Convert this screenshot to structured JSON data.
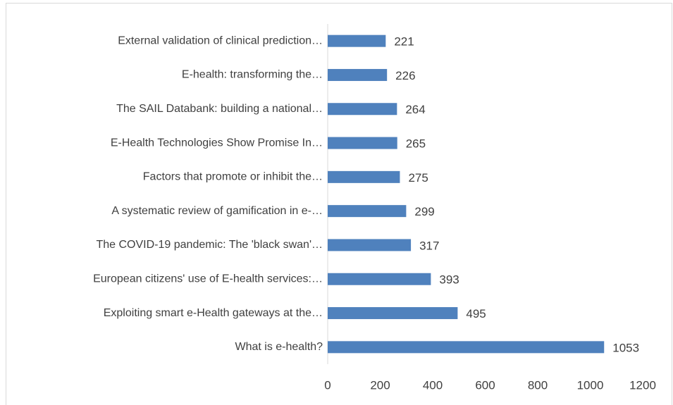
{
  "chart_data": {
    "type": "bar",
    "orientation": "horizontal",
    "categories": [
      "External validation of clinical prediction…",
      "E-health: transforming the…",
      "The SAIL Databank: building a national…",
      "E-Health Technologies Show Promise In…",
      "Factors that promote or inhibit the…",
      "A systematic review of gamification in e-…",
      "The COVID-19 pandemic: The 'black swan'…",
      "European citizens' use of E-health services:…",
      "Exploiting smart e-Health gateways at the…",
      "What is e-health?"
    ],
    "values": [
      221,
      226,
      264,
      265,
      275,
      299,
      317,
      393,
      495,
      1053
    ],
    "color": "#4f81bd",
    "xlim": [
      0,
      1200
    ],
    "xticks": [
      0,
      200,
      400,
      600,
      800,
      1000,
      1200
    ],
    "grid": false
  }
}
